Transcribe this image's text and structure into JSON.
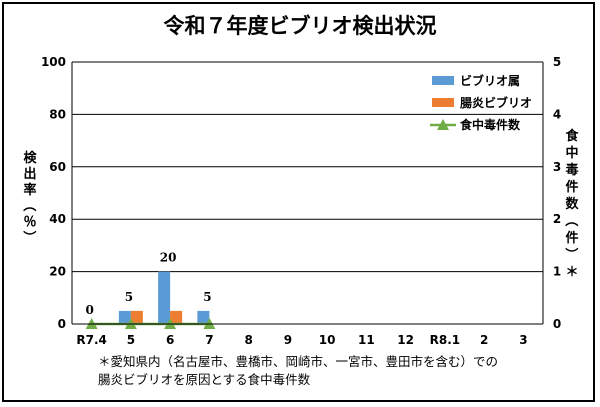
{
  "chart_data": {
    "type": "bar",
    "title": "令和７年度ビブリオ検出状況",
    "categories": [
      "R7.4",
      "5",
      "6",
      "7",
      "8",
      "9",
      "10",
      "11",
      "12",
      "R8.1",
      "2",
      "3"
    ],
    "series": [
      {
        "name": "ビブリオ属",
        "kind": "bar",
        "axis": "left",
        "color": "#5b9bd5",
        "values": [
          0,
          5,
          20,
          5,
          null,
          null,
          null,
          null,
          null,
          null,
          null,
          null
        ]
      },
      {
        "name": "腸炎ビブリオ",
        "kind": "bar",
        "axis": "left",
        "color": "#ed7d31",
        "values": [
          0,
          5,
          5,
          0,
          null,
          null,
          null,
          null,
          null,
          null,
          null,
          null
        ]
      },
      {
        "name": "食中毒件数",
        "kind": "line",
        "axis": "right",
        "color": "#70ad47",
        "values": [
          0,
          0,
          0,
          0,
          null,
          null,
          null,
          null,
          null,
          null,
          null,
          null
        ]
      }
    ],
    "data_labels": [
      "0",
      "5",
      "20",
      "5"
    ],
    "ylabel_left": "検出率（％）",
    "ylabel_right": "食中毒件数（件）＊",
    "ylim_left": [
      0,
      100
    ],
    "yticks_left": [
      0,
      20,
      40,
      60,
      80,
      100
    ],
    "ylim_right": [
      0,
      5
    ],
    "yticks_right": [
      0,
      1,
      2,
      3,
      4,
      5
    ],
    "grid": true,
    "legend_position": "top-right"
  },
  "footnote": {
    "line1": "＊愛知県内（名古屋市、豊橋市、岡崎市、一宮市、豊田市を含む）での",
    "line2": "腸炎ビブリオを原因とする食中毒件数"
  }
}
